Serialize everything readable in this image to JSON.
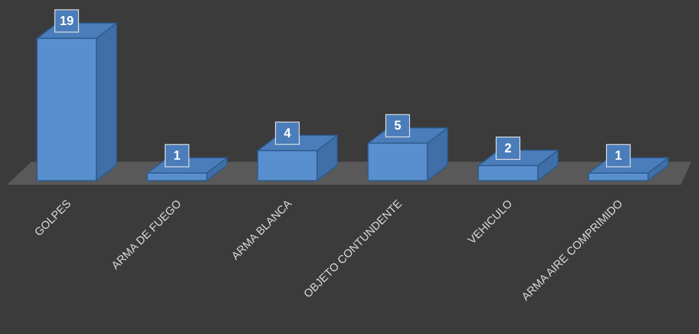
{
  "chart_data": {
    "type": "bar3d",
    "categories": [
      "GOLPES",
      "ARMA DE FUEGO",
      "ARMA BLANCA",
      "OBJETO CONTUNDENTE",
      "VEHICULO",
      "ARMA AIRE COMPRIMIDO"
    ],
    "values": [
      19,
      1,
      4,
      5,
      2,
      1
    ],
    "color": "#5a8fcf"
  }
}
